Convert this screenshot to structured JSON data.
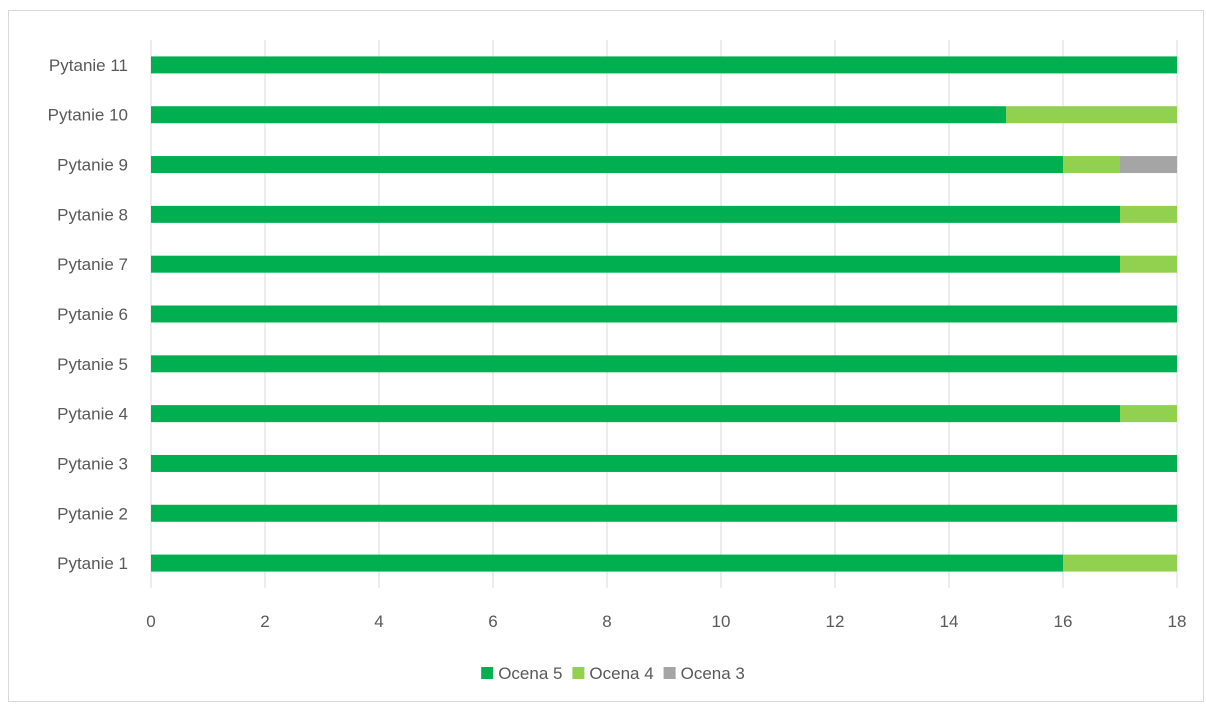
{
  "chart_data": {
    "type": "bar",
    "orientation": "horizontal",
    "stacked": true,
    "categories": [
      "Pytanie 1",
      "Pytanie 2",
      "Pytanie 3",
      "Pytanie 4",
      "Pytanie 5",
      "Pytanie 6",
      "Pytanie 7",
      "Pytanie 8",
      "Pytanie 9",
      "Pytanie 10",
      "Pytanie 11"
    ],
    "series": [
      {
        "name": "Ocena 5",
        "color": "#00b050",
        "values": [
          16,
          18,
          18,
          17,
          18,
          18,
          17,
          17,
          16,
          15,
          18
        ]
      },
      {
        "name": "Ocena 4",
        "color": "#92d050",
        "values": [
          2,
          0,
          0,
          1,
          0,
          0,
          1,
          1,
          1,
          3,
          0
        ]
      },
      {
        "name": "Ocena 3",
        "color": "#a5a5a5",
        "values": [
          0,
          0,
          0,
          0,
          0,
          0,
          0,
          0,
          1,
          0,
          0
        ]
      }
    ],
    "xlim": [
      0,
      18
    ],
    "xticks": [
      0,
      2,
      4,
      6,
      8,
      10,
      12,
      14,
      16,
      18
    ],
    "xlabel": "",
    "ylabel": "",
    "title": "",
    "grid": true,
    "legend_position": "bottom"
  }
}
